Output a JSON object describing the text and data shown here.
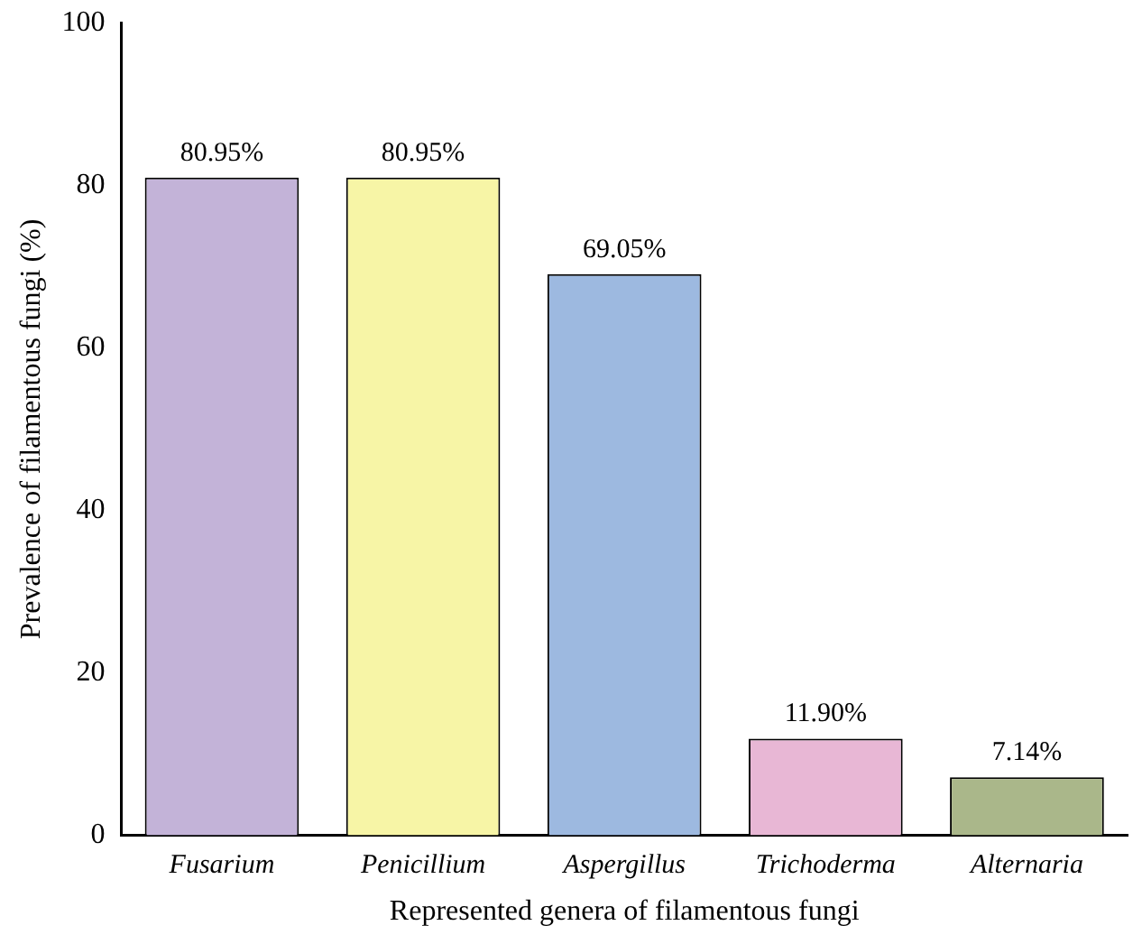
{
  "chart_data": {
    "type": "bar",
    "xlabel": "Represented genera of filamentous fungi",
    "ylabel": "Prevalence of filamentous fungi (%)",
    "categories": [
      "Fusarium",
      "Penicillium",
      "Aspergillus",
      "Trichoderma",
      "Alternaria"
    ],
    "values": [
      80.95,
      80.95,
      69.05,
      11.9,
      7.14
    ],
    "colors": [
      "#c3b3d8",
      "#f7f5a6",
      "#9db9e0",
      "#e8b7d5",
      "#aab78a"
    ],
    "value_labels": [
      "80.95%",
      "80.95%",
      "69.05%",
      "11.90%",
      "7.14%"
    ],
    "ylim": [
      0,
      100
    ],
    "yticks": [
      0,
      20,
      40,
      60,
      80,
      100
    ]
  }
}
